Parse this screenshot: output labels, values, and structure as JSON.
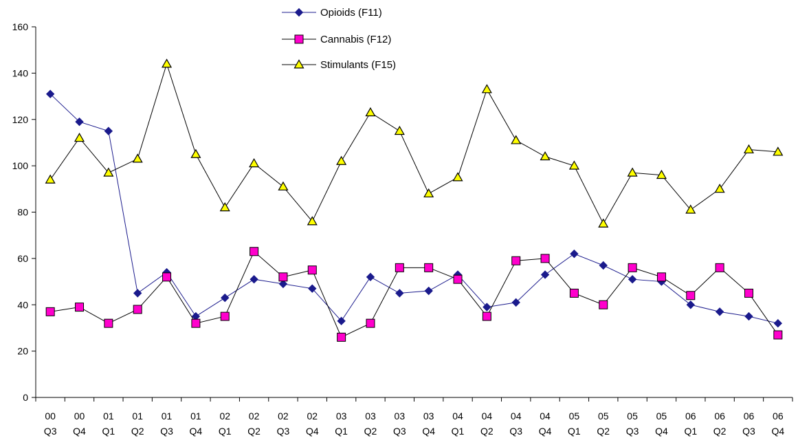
{
  "chart_data": {
    "type": "line",
    "title": "",
    "xlabel": "",
    "ylabel": "",
    "ylim": [
      0,
      160
    ],
    "yticks": [
      0,
      20,
      40,
      60,
      80,
      100,
      120,
      140,
      160
    ],
    "grid": false,
    "legend_position": "top-center",
    "categories": [
      [
        "00",
        "Q3"
      ],
      [
        "00",
        "Q4"
      ],
      [
        "01",
        "Q1"
      ],
      [
        "01",
        "Q2"
      ],
      [
        "01",
        "Q3"
      ],
      [
        "01",
        "Q4"
      ],
      [
        "02",
        "Q1"
      ],
      [
        "02",
        "Q2"
      ],
      [
        "02",
        "Q3"
      ],
      [
        "02",
        "Q4"
      ],
      [
        "03",
        "Q1"
      ],
      [
        "03",
        "Q2"
      ],
      [
        "03",
        "Q3"
      ],
      [
        "03",
        "Q4"
      ],
      [
        "04",
        "Q1"
      ],
      [
        "04",
        "Q2"
      ],
      [
        "04",
        "Q3"
      ],
      [
        "04",
        "Q4"
      ],
      [
        "05",
        "Q1"
      ],
      [
        "05",
        "Q2"
      ],
      [
        "05",
        "Q3"
      ],
      [
        "05",
        "Q4"
      ],
      [
        "06",
        "Q1"
      ],
      [
        "06",
        "Q2"
      ],
      [
        "06",
        "Q3"
      ],
      [
        "06",
        "Q4"
      ]
    ],
    "series": [
      {
        "name": "Opioids (F11)",
        "marker": "diamond",
        "line_color": "#1a1a8c",
        "marker_fill": "#1a1a8c",
        "values": [
          131,
          119,
          115,
          45,
          54,
          35,
          43,
          51,
          49,
          47,
          33,
          52,
          45,
          46,
          53,
          39,
          41,
          53,
          62,
          57,
          51,
          50,
          40,
          37,
          35,
          32
        ]
      },
      {
        "name": "Cannabis (F12)",
        "marker": "square",
        "line_color": "#000000",
        "marker_fill": "#ff00cc",
        "values": [
          37,
          39,
          32,
          38,
          52,
          32,
          35,
          63,
          52,
          55,
          26,
          32,
          56,
          56,
          51,
          35,
          59,
          60,
          45,
          40,
          56,
          52,
          44,
          56,
          45,
          27
        ]
      },
      {
        "name": "Stimulants (F15)",
        "marker": "triangle",
        "line_color": "#000000",
        "marker_fill": "#ffff00",
        "values": [
          94,
          112,
          97,
          103,
          144,
          105,
          82,
          101,
          91,
          76,
          102,
          123,
          115,
          88,
          95,
          133,
          111,
          104,
          100,
          75,
          97,
          96,
          81,
          90,
          107,
          106
        ]
      }
    ]
  }
}
